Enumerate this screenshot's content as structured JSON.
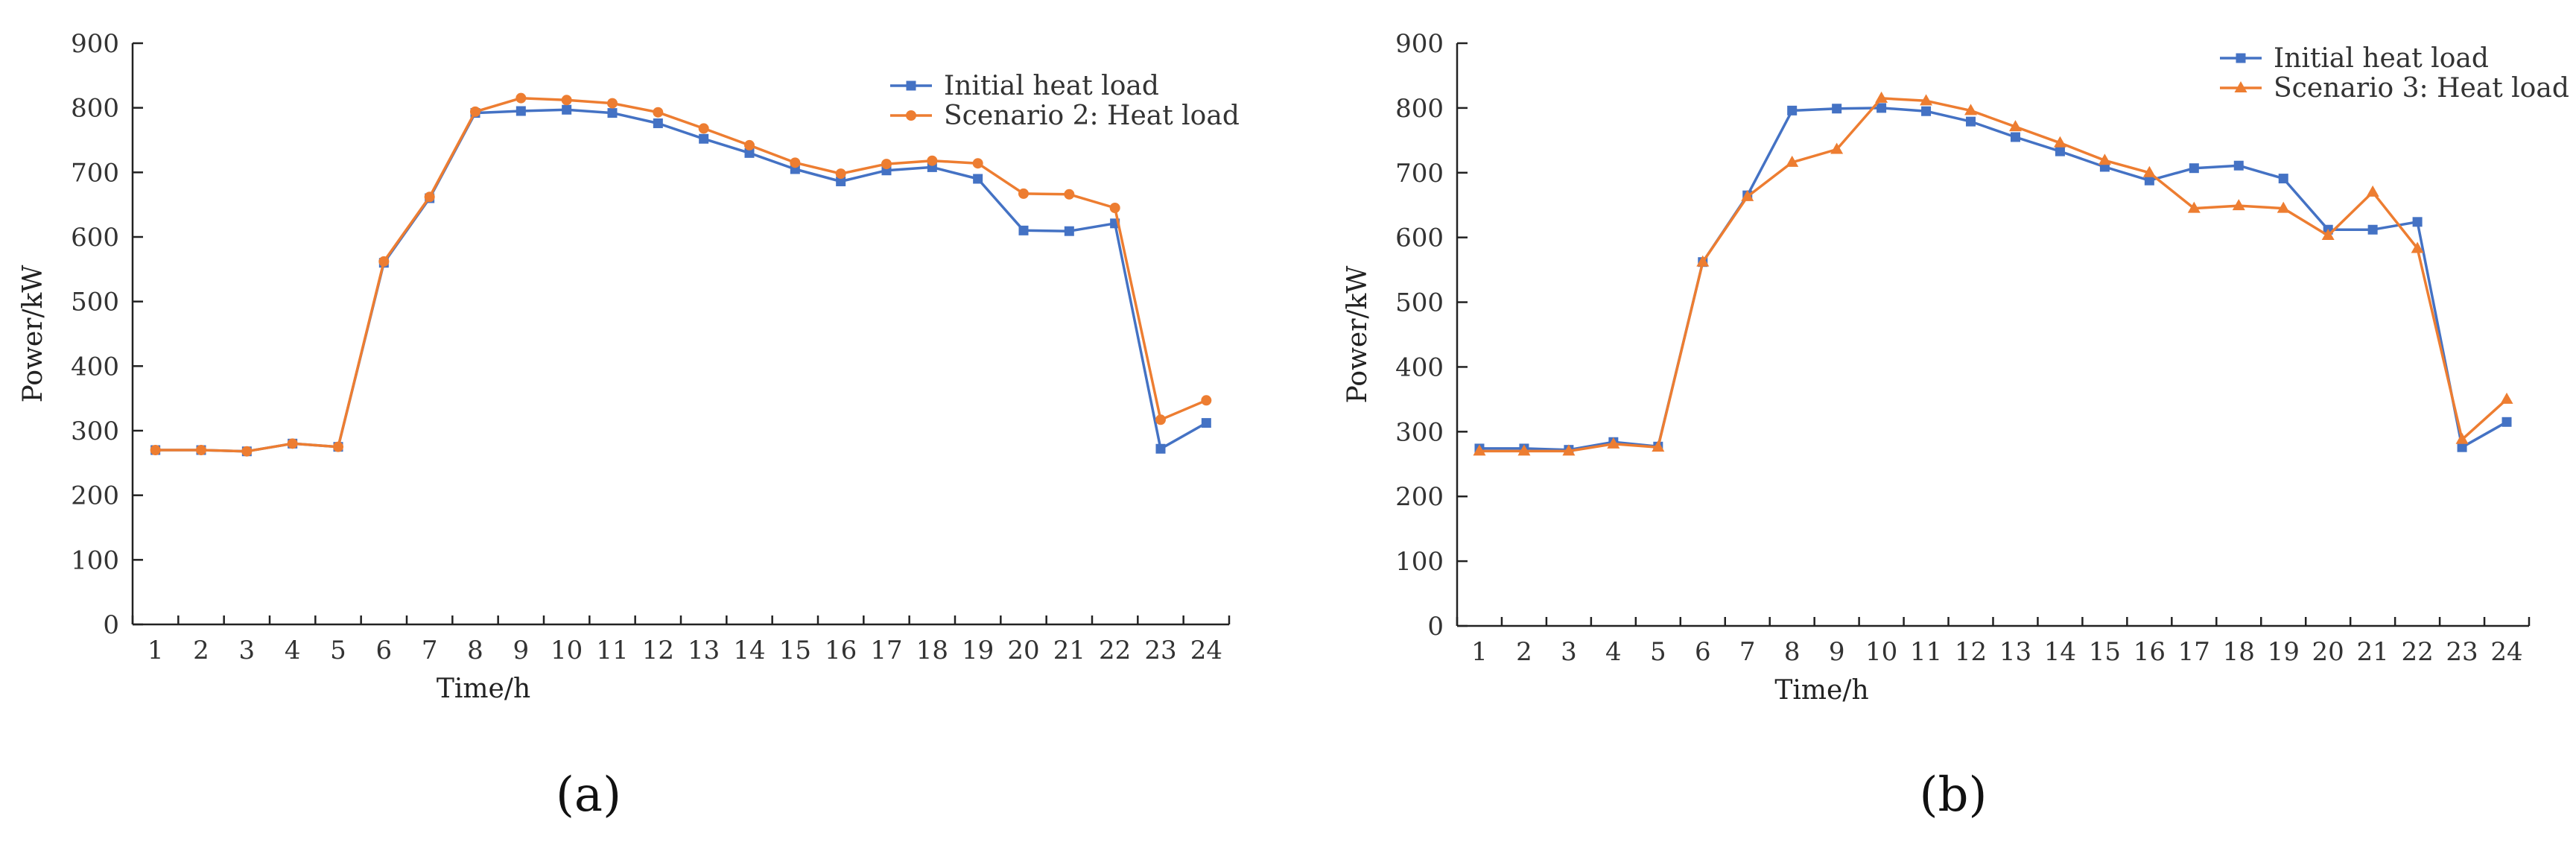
{
  "colors": {
    "initial": "#4472C4",
    "scenario": "#ED7D31"
  },
  "chart_data": [
    {
      "type": "line",
      "panel_label": "(a)",
      "xlabel": "Time/h",
      "ylabel": "Power/kW",
      "ylim": [
        0,
        900
      ],
      "yticks": [
        0,
        100,
        200,
        300,
        400,
        500,
        600,
        700,
        800,
        900
      ],
      "categories": [
        "1",
        "2",
        "3",
        "4",
        "5",
        "6",
        "7",
        "8",
        "9",
        "10",
        "11",
        "12",
        "13",
        "14",
        "15",
        "16",
        "17",
        "18",
        "19",
        "20",
        "21",
        "22",
        "23",
        "24"
      ],
      "legend_position": "top-right",
      "series": [
        {
          "name": "Initial heat load",
          "marker": "square",
          "color": "#4472C4",
          "values": [
            270,
            270,
            268,
            280,
            275,
            560,
            660,
            792,
            795,
            797,
            792,
            776,
            752,
            730,
            705,
            686,
            703,
            708,
            690,
            610,
            609,
            621,
            272,
            312
          ]
        },
        {
          "name": "Scenario 2: Heat load",
          "marker": "circle",
          "color": "#ED7D31",
          "values": [
            270,
            270,
            268,
            280,
            275,
            562,
            662,
            794,
            815,
            812,
            807,
            793,
            768,
            742,
            715,
            698,
            713,
            718,
            714,
            667,
            666,
            645,
            317,
            347
          ]
        }
      ]
    },
    {
      "type": "line",
      "panel_label": "(b)",
      "xlabel": "Time/h",
      "ylabel": "Power/kW",
      "ylim": [
        0,
        900
      ],
      "yticks": [
        0,
        100,
        200,
        300,
        400,
        500,
        600,
        700,
        800,
        900
      ],
      "categories": [
        "1",
        "2",
        "3",
        "4",
        "5",
        "6",
        "7",
        "8",
        "9",
        "10",
        "11",
        "12",
        "13",
        "14",
        "15",
        "16",
        "17",
        "18",
        "19",
        "20",
        "21",
        "22",
        "23",
        "24"
      ],
      "legend_position": "top-right",
      "series": [
        {
          "name": "Initial heat load",
          "marker": "square",
          "color": "#4472C4",
          "values": [
            274,
            274,
            272,
            284,
            277,
            562,
            665,
            796,
            799,
            800,
            795,
            779,
            755,
            733,
            709,
            688,
            707,
            711,
            691,
            612,
            612,
            624,
            276,
            315
          ]
        },
        {
          "name": "Scenario 3: Heat load",
          "marker": "triangle",
          "color": "#ED7D31",
          "values": [
            270,
            270,
            270,
            281,
            276,
            562,
            663,
            716,
            736,
            815,
            811,
            796,
            771,
            746,
            719,
            700,
            645,
            649,
            645,
            603,
            670,
            583,
            288,
            350
          ]
        }
      ]
    }
  ]
}
